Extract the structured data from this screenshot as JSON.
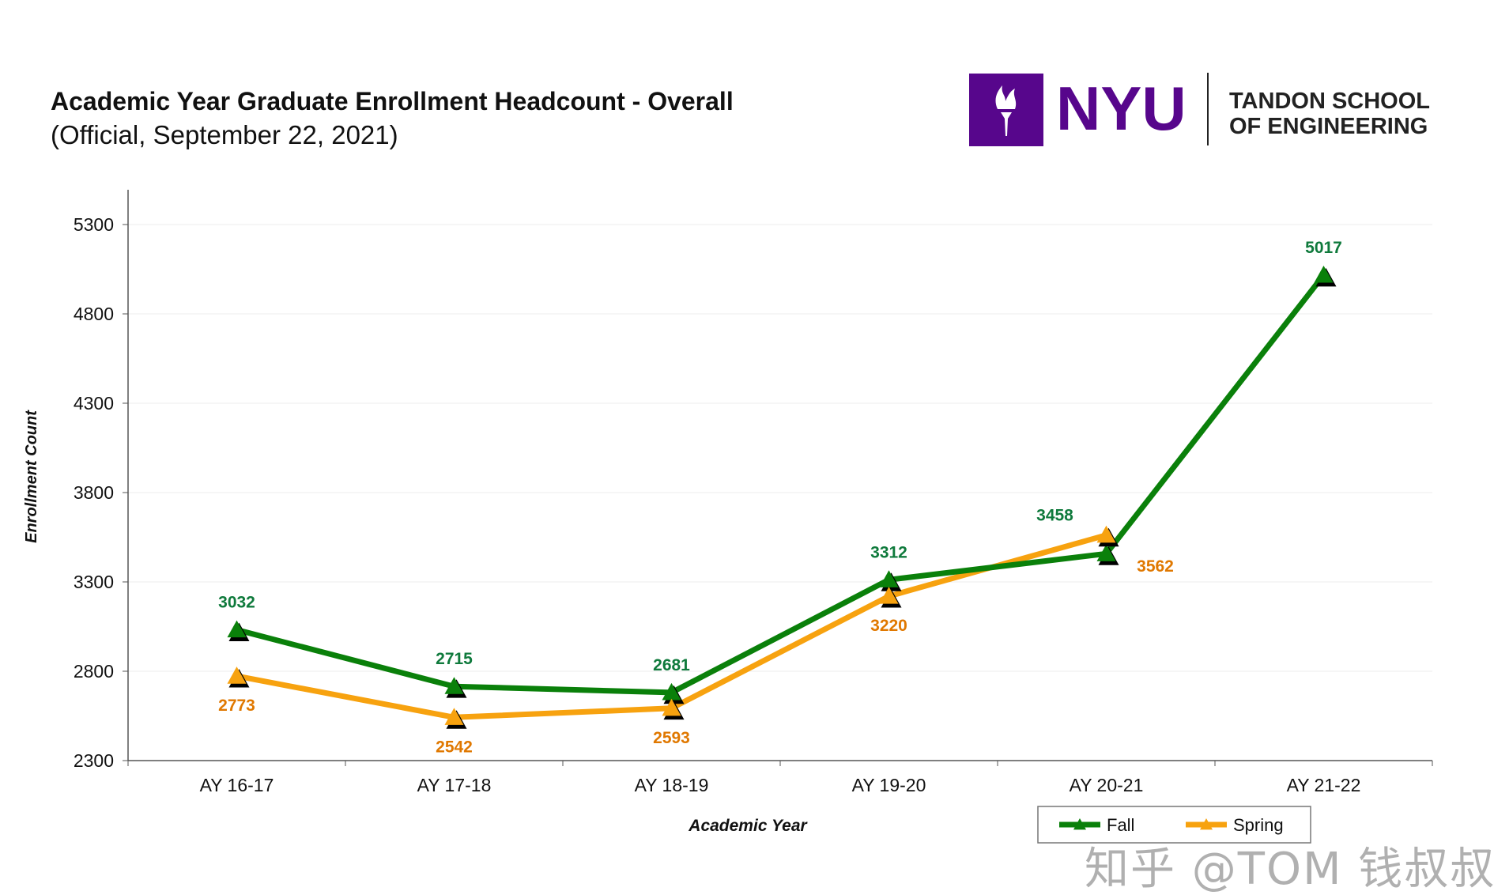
{
  "header": {
    "title": "Academic Year Graduate Enrollment Headcount - Overall",
    "subtitle": "(Official, September 22, 2021)"
  },
  "logo": {
    "brand": "NYU",
    "line1": "TANDON SCHOOL",
    "line2": "OF ENGINEERING",
    "color": "#57068c"
  },
  "watermark": "知乎 @TOM 钱叔叔",
  "chart_data": {
    "type": "line",
    "title": "Academic Year Graduate Enrollment Headcount - Overall",
    "xlabel": "Academic Year",
    "ylabel": "Enrollment  Count",
    "categories": [
      "AY 16-17",
      "AY 17-18",
      "AY 18-19",
      "AY 19-20",
      "AY 20-21",
      "AY 21-22"
    ],
    "ylim": [
      2300,
      5300
    ],
    "yticks": [
      2300,
      2800,
      3300,
      3800,
      4300,
      4800,
      5300
    ],
    "grid": true,
    "legend": "bottom-right",
    "series": [
      {
        "name": "Fall",
        "color": "#0a800a",
        "label_color": "#0f7a3c",
        "values": [
          3032,
          2715,
          2681,
          3312,
          3458,
          5017
        ]
      },
      {
        "name": "Spring",
        "color": "#f7a20f",
        "label_color": "#e07800",
        "values": [
          2773,
          2542,
          2593,
          3220,
          3562,
          null
        ]
      }
    ]
  }
}
